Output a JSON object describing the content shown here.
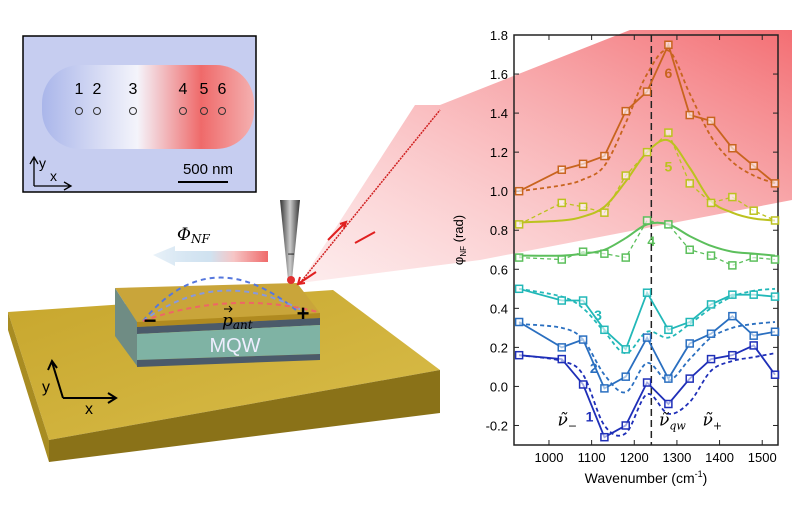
{
  "inset": {
    "point_labels": [
      "1",
      "2",
      "3",
      "4",
      "5",
      "6"
    ],
    "scalebar": "500 nm",
    "axis_y": "y",
    "axis_x": "x"
  },
  "diagram": {
    "phi_label": "Φ",
    "phi_sub": "NF",
    "dipole_label": "p",
    "dipole_sub": "ant",
    "layer_label": "MQW",
    "minus": "−",
    "plus": "+",
    "axis_y": "y",
    "axis_x": "x",
    "colors": {
      "gold": "#c9a82c",
      "mqw": "#7fb3a4",
      "beam": "#e8343a"
    }
  },
  "chart_data": {
    "type": "line",
    "xlabel": "Wavenumber (cm",
    "xlabel_sup": "-1",
    "xlabel_end": ")",
    "ylabel": "φ",
    "ylabel_sub": "NF",
    "ylabel_unit": " (rad)",
    "xlim": [
      918,
      1537
    ],
    "ylim": [
      -0.3,
      1.8
    ],
    "xticks": [
      1000,
      1100,
      1200,
      1300,
      1400,
      1500
    ],
    "xtick_labels": [
      "1000",
      "1100",
      "1200",
      "1300",
      "1400",
      "1500"
    ],
    "yticks": [
      -0.2,
      0.0,
      0.2,
      0.4,
      0.6,
      0.8,
      1.0,
      1.2,
      1.4,
      1.6,
      1.8
    ],
    "ytick_labels": [
      "-0.2",
      "0.0",
      "0.2",
      "0.4",
      "0.6",
      "0.8",
      "1.0",
      "1.2",
      "1.4",
      "1.6",
      "1.8"
    ],
    "grid": false,
    "vline_x": 1240,
    "annotations": [
      {
        "text": "ν̃",
        "sub": "−",
        "x": 1020,
        "y": -0.2
      },
      {
        "text": "ν̃",
        "sub": "qw",
        "x": 1258,
        "y": -0.2
      },
      {
        "text": "ν̃",
        "sub": "+",
        "x": 1360,
        "y": -0.2
      }
    ],
    "x": [
      930,
      1030,
      1080,
      1130,
      1180,
      1230,
      1280,
      1330,
      1380,
      1430,
      1480,
      1530
    ],
    "series": [
      {
        "name": "6",
        "color": "#c8641e",
        "data_style": "solid",
        "label_x": 1280,
        "label_y": 1.58,
        "values": [
          1.0,
          1.11,
          1.14,
          1.18,
          1.41,
          1.51,
          1.75,
          1.39,
          1.36,
          1.22,
          1.13,
          1.04
        ],
        "fit": [
          1.0,
          1.03,
          1.06,
          1.13,
          1.35,
          1.6,
          1.72,
          1.5,
          1.28,
          1.15,
          1.08,
          1.04
        ]
      },
      {
        "name": "5",
        "color": "#bcc21e",
        "data_style": "dashed",
        "label_x": 1280,
        "label_y": 1.1,
        "values": [
          0.83,
          0.94,
          0.92,
          0.89,
          1.08,
          1.2,
          1.3,
          1.04,
          0.94,
          0.97,
          0.9,
          0.85
        ],
        "fit": [
          0.84,
          0.85,
          0.87,
          0.92,
          1.05,
          1.2,
          1.26,
          1.12,
          0.95,
          0.89,
          0.86,
          0.85
        ]
      },
      {
        "name": "4",
        "color": "#5cbf5c",
        "data_style": "dashed",
        "label_x": 1240,
        "label_y": 0.72,
        "values": [
          0.66,
          0.65,
          0.69,
          0.68,
          0.66,
          0.85,
          0.83,
          0.7,
          0.67,
          0.62,
          0.66,
          0.65
        ],
        "fit": [
          0.67,
          0.67,
          0.68,
          0.7,
          0.76,
          0.83,
          0.83,
          0.77,
          0.72,
          0.69,
          0.68,
          0.67
        ]
      },
      {
        "name": "3",
        "color": "#22b8b8",
        "data_style": "solid",
        "label_x": 1115,
        "label_y": 0.34,
        "values": [
          0.5,
          0.44,
          0.44,
          0.29,
          0.19,
          0.48,
          0.29,
          0.33,
          0.42,
          0.47,
          0.47,
          0.46
        ],
        "fit": [
          0.5,
          0.46,
          0.4,
          0.28,
          0.17,
          0.28,
          0.25,
          0.32,
          0.4,
          0.46,
          0.49,
          0.5
        ]
      },
      {
        "name": "2",
        "color": "#2a6fc0",
        "data_style": "solid",
        "label_x": 1105,
        "label_y": 0.07,
        "values": [
          0.33,
          0.2,
          0.24,
          -0.01,
          0.05,
          0.25,
          0.04,
          0.22,
          0.27,
          0.36,
          0.26,
          0.28
        ],
        "fit": [
          0.32,
          0.3,
          0.24,
          0.06,
          -0.03,
          0.12,
          0.03,
          0.14,
          0.25,
          0.3,
          0.32,
          0.33
        ]
      },
      {
        "name": "1",
        "color": "#1f2fb8",
        "data_style": "solid",
        "label_x": 1095,
        "label_y": -0.18,
        "values": [
          0.16,
          0.14,
          0.01,
          -0.26,
          -0.2,
          0.02,
          -0.09,
          0.04,
          0.14,
          0.16,
          0.21,
          0.06
        ],
        "fit": [
          0.16,
          0.13,
          0.06,
          -0.2,
          -0.24,
          -0.04,
          -0.14,
          -0.08,
          0.08,
          0.13,
          0.15,
          0.17
        ]
      }
    ]
  }
}
